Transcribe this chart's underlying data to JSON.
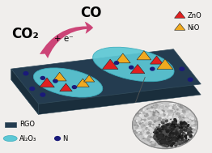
{
  "bg_color": "#1c3040",
  "cyan_ellipse_color": "#5cc8d5",
  "zno_color": "#e02020",
  "nio_color": "#f0aa20",
  "n_dot_color": "#1a1a7a",
  "arrow_color": "#cc4477",
  "arrow_fill": "#dd88aa",
  "title_co2": "CO₂",
  "title_co": "CO",
  "label_e": "+ e⁻",
  "legend_rgo": "RGO",
  "legend_al2o3": "Al₂O₃",
  "legend_n": "N",
  "legend_zno": "ZnO",
  "legend_nio": "NiO",
  "fig_bg": "#f0eeec",
  "platform_top_color": "#2a4a5c",
  "platform_side_color": "#1a3040"
}
